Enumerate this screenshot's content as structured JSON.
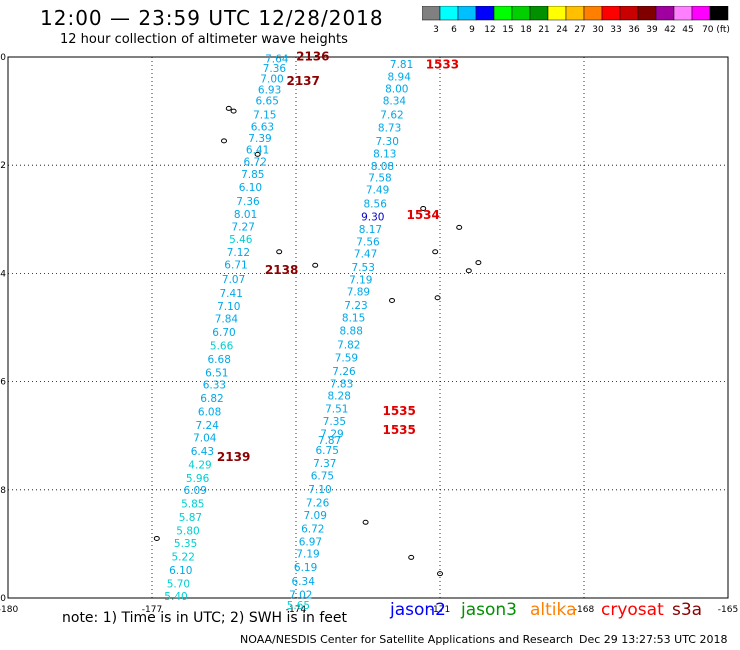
{
  "header": {
    "title": "12:00 — 23:59 UTC 12/28/2018",
    "subtitle": "12 hour collection of altimeter wave heights"
  },
  "colorbar": {
    "colors": [
      "#808080",
      "#00ffff",
      "#00bfff",
      "#0000ff",
      "#00ff00",
      "#00d000",
      "#009000",
      "#ffff00",
      "#ffc000",
      "#ff8000",
      "#ff0000",
      "#c80000",
      "#800000",
      "#a000a0",
      "#ff80ff",
      "#ff00ff",
      "#000000"
    ],
    "labels": [
      "3",
      "6",
      "9",
      "12",
      "15",
      "18",
      "21",
      "24",
      "27",
      "30",
      "33",
      "36",
      "39",
      "42",
      "45",
      "70 (ft)"
    ]
  },
  "map": {
    "lon_min": -180,
    "lon_max": -165,
    "lat_min": -10,
    "lat_max": 0,
    "x_ticks": [
      "-180",
      "-177",
      "-174",
      "-171",
      "-168",
      "-165"
    ],
    "y_ticks": [
      "0",
      "-2",
      "-4",
      "-6",
      "-8",
      "-10"
    ],
    "western_track": [
      {
        "lon": -174.4,
        "lat": -0.05,
        "v": "7.64"
      },
      {
        "lon": -174.45,
        "lat": -0.22,
        "v": "7.36"
      },
      {
        "lon": -174.5,
        "lat": -0.42,
        "v": "7.00"
      },
      {
        "lon": -174.55,
        "lat": -0.62,
        "v": "6.93"
      },
      {
        "lon": -174.6,
        "lat": -0.82,
        "v": "6.65"
      },
      {
        "lon": -174.65,
        "lat": -1.08,
        "v": "7.15"
      },
      {
        "lon": -174.7,
        "lat": -1.3,
        "v": "6.63"
      },
      {
        "lon": -174.75,
        "lat": -1.52,
        "v": "7.39"
      },
      {
        "lon": -174.8,
        "lat": -1.73,
        "v": "6.41"
      },
      {
        "lon": -174.85,
        "lat": -1.95,
        "v": "6.72"
      },
      {
        "lon": -174.9,
        "lat": -2.18,
        "v": "7.85"
      },
      {
        "lon": -174.95,
        "lat": -2.42,
        "v": "6.10"
      },
      {
        "lon": -175.0,
        "lat": -2.68,
        "v": "7.36"
      },
      {
        "lon": -175.05,
        "lat": -2.92,
        "v": "8.01"
      },
      {
        "lon": -175.1,
        "lat": -3.15,
        "v": "7.27"
      },
      {
        "lon": -175.15,
        "lat": -3.38,
        "v": "5.46"
      },
      {
        "lon": -175.2,
        "lat": -3.62,
        "v": "7.12"
      },
      {
        "lon": -175.25,
        "lat": -3.85,
        "v": "6.71"
      },
      {
        "lon": -175.3,
        "lat": -4.12,
        "v": "7.07"
      },
      {
        "lon": -175.35,
        "lat": -4.38,
        "v": "7.41"
      },
      {
        "lon": -175.4,
        "lat": -4.62,
        "v": "7.10"
      },
      {
        "lon": -175.45,
        "lat": -4.85,
        "v": "7.84"
      },
      {
        "lon": -175.5,
        "lat": -5.1,
        "v": "6.70"
      },
      {
        "lon": -175.55,
        "lat": -5.35,
        "v": "5.66"
      },
      {
        "lon": -175.6,
        "lat": -5.6,
        "v": "6.68"
      },
      {
        "lon": -175.65,
        "lat": -5.85,
        "v": "6.51"
      },
      {
        "lon": -175.7,
        "lat": -6.07,
        "v": "6.33"
      },
      {
        "lon": -175.75,
        "lat": -6.32,
        "v": "6.82"
      },
      {
        "lon": -175.8,
        "lat": -6.57,
        "v": "6.08"
      },
      {
        "lon": -175.85,
        "lat": -6.82,
        "v": "7.24"
      },
      {
        "lon": -175.9,
        "lat": -7.05,
        "v": "7.04"
      },
      {
        "lon": -175.95,
        "lat": -7.3,
        "v": "6.43"
      },
      {
        "lon": -176.0,
        "lat": -7.55,
        "v": "4.29"
      },
      {
        "lon": -176.05,
        "lat": -7.8,
        "v": "5.96"
      },
      {
        "lon": -176.1,
        "lat": -8.02,
        "v": "6.09"
      },
      {
        "lon": -176.15,
        "lat": -8.27,
        "v": "5.85"
      },
      {
        "lon": -176.2,
        "lat": -8.52,
        "v": "5.87"
      },
      {
        "lon": -176.25,
        "lat": -8.77,
        "v": "5.80"
      },
      {
        "lon": -176.3,
        "lat": -9.0,
        "v": "5.35"
      },
      {
        "lon": -176.35,
        "lat": -9.25,
        "v": "5.22"
      },
      {
        "lon": -176.4,
        "lat": -9.5,
        "v": "6.10"
      },
      {
        "lon": -176.45,
        "lat": -9.75,
        "v": "5.70"
      },
      {
        "lon": -176.5,
        "lat": -9.98,
        "v": "5.40"
      }
    ],
    "eastern_track": [
      {
        "lon": -171.8,
        "lat": -0.15,
        "v": "7.81"
      },
      {
        "lon": -171.85,
        "lat": -0.38,
        "v": "8.94"
      },
      {
        "lon": -171.9,
        "lat": -0.6,
        "v": "8.00"
      },
      {
        "lon": -171.95,
        "lat": -0.82,
        "v": "8.34"
      },
      {
        "lon": -172.0,
        "lat": -1.08,
        "v": "7.62"
      },
      {
        "lon": -172.05,
        "lat": -1.32,
        "v": "8.73"
      },
      {
        "lon": -172.1,
        "lat": -1.57,
        "v": "7.30"
      },
      {
        "lon": -172.15,
        "lat": -1.8,
        "v": "8.13"
      },
      {
        "lon": -172.2,
        "lat": -2.03,
        "v": "8.08"
      },
      {
        "lon": -172.25,
        "lat": -2.25,
        "v": "7.58"
      },
      {
        "lon": -172.3,
        "lat": -2.47,
        "v": "7.49"
      },
      {
        "lon": -172.35,
        "lat": -2.73,
        "v": "8.56"
      },
      {
        "lon": -172.4,
        "lat": -2.97,
        "v": "9.30"
      },
      {
        "lon": -172.45,
        "lat": -3.2,
        "v": "8.17"
      },
      {
        "lon": -172.5,
        "lat": -3.43,
        "v": "7.56"
      },
      {
        "lon": -172.55,
        "lat": -3.65,
        "v": "7.47"
      },
      {
        "lon": -172.6,
        "lat": -3.9,
        "v": "7.53"
      },
      {
        "lon": -172.65,
        "lat": -4.13,
        "v": "7.19"
      },
      {
        "lon": -172.7,
        "lat": -4.35,
        "v": "7.89"
      },
      {
        "lon": -172.75,
        "lat": -4.6,
        "v": "7.23"
      },
      {
        "lon": -172.8,
        "lat": -4.83,
        "v": "8.15"
      },
      {
        "lon": -172.85,
        "lat": -5.07,
        "v": "8.88"
      },
      {
        "lon": -172.9,
        "lat": -5.33,
        "v": "7.82"
      },
      {
        "lon": -172.95,
        "lat": -5.57,
        "v": "7.59"
      },
      {
        "lon": -173.0,
        "lat": -5.82,
        "v": "7.26"
      },
      {
        "lon": -173.05,
        "lat": -6.05,
        "v": "7.83"
      },
      {
        "lon": -173.1,
        "lat": -6.28,
        "v": "8.28"
      },
      {
        "lon": -173.15,
        "lat": -6.52,
        "v": "7.51"
      },
      {
        "lon": -173.2,
        "lat": -6.75,
        "v": "7.35"
      },
      {
        "lon": -173.25,
        "lat": -6.98,
        "v": "7.29"
      },
      {
        "lon": -173.3,
        "lat": -7.1,
        "v": "7.87"
      },
      {
        "lon": -173.35,
        "lat": -7.28,
        "v": "6.75"
      },
      {
        "lon": -173.4,
        "lat": -7.52,
        "v": "7.37"
      },
      {
        "lon": -173.45,
        "lat": -7.75,
        "v": "6.75"
      },
      {
        "lon": -173.5,
        "lat": -8.0,
        "v": "7.10"
      },
      {
        "lon": -173.55,
        "lat": -8.25,
        "v": "7.26"
      },
      {
        "lon": -173.6,
        "lat": -8.48,
        "v": "7.09"
      },
      {
        "lon": -173.65,
        "lat": -8.73,
        "v": "6.72"
      },
      {
        "lon": -173.7,
        "lat": -8.97,
        "v": "6.97"
      },
      {
        "lon": -173.75,
        "lat": -9.2,
        "v": "7.19"
      },
      {
        "lon": -173.8,
        "lat": -9.45,
        "v": "6.19"
      },
      {
        "lon": -173.85,
        "lat": -9.7,
        "v": "6.34"
      },
      {
        "lon": -173.9,
        "lat": -9.95,
        "v": "7.02"
      },
      {
        "lon": -173.95,
        "lat": -10.15,
        "v": "5.65"
      }
    ],
    "time_labels": [
      {
        "text": "2136",
        "color": "#8b0000",
        "lon": -173.65,
        "lat": 0.0
      },
      {
        "text": "2137",
        "color": "#8b0000",
        "lon": -173.85,
        "lat": -0.45
      },
      {
        "text": "1533",
        "color": "#e00000",
        "lon": -170.95,
        "lat": -0.15
      },
      {
        "text": "1534",
        "color": "#e00000",
        "lon": -171.35,
        "lat": -2.93
      },
      {
        "text": "2138",
        "color": "#8b0000",
        "lon": -174.3,
        "lat": -3.95
      },
      {
        "text": "1535",
        "color": "#e00000",
        "lon": -171.85,
        "lat": -6.55
      },
      {
        "text": "1535",
        "color": "#e00000",
        "lon": -171.85,
        "lat": -6.9
      },
      {
        "text": "2139",
        "color": "#8b0000",
        "lon": -175.3,
        "lat": -7.4
      }
    ]
  },
  "footer": {
    "note": "note:  1) Time is in UTC;  2) SWH is in feet",
    "satellites": [
      {
        "name": "jason2",
        "color": "#0000ff"
      },
      {
        "name": "jason3",
        "color": "#009000"
      },
      {
        "name": "altika",
        "color": "#ff8000"
      },
      {
        "name": "cryosat",
        "color": "#ff0000"
      },
      {
        "name": "s3a",
        "color": "#8b0000"
      }
    ],
    "credit": "NOAA/NESDIS Center for Satellite Applications and Research",
    "timestamp": "Dec 29 13:27:53 UTC 2018"
  }
}
